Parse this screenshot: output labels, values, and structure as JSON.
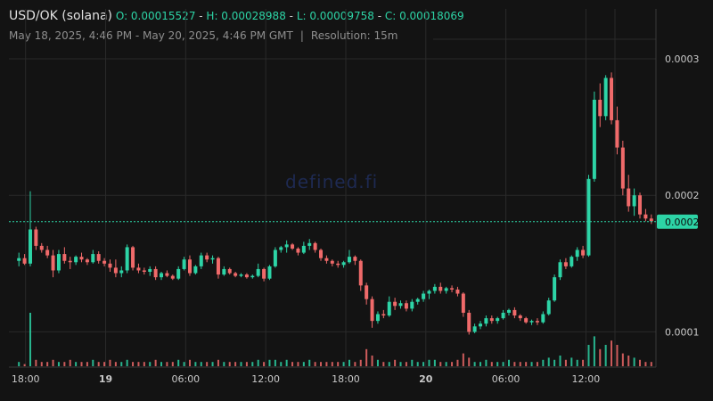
{
  "header": {
    "symbol": "USD/OK (solana)",
    "open": "O: 0.00015527",
    "high": "H: 0.00028988",
    "low": "L: 0.00009758",
    "close": "C: 0.00018069",
    "date_range": "May 18, 2025, 4:46 PM - May 20, 2025, 4:46 PM GMT",
    "separator": "|",
    "resolution": "Resolution: 15m"
  },
  "watermark": "defined.fi",
  "price_tag": "0.0002",
  "colors": {
    "up": "#2dd4a6",
    "down": "#f06a6a",
    "background": "#131313",
    "grid": "#2a2a2a",
    "price_line": "#2dd4a6"
  },
  "chart_data": {
    "type": "candlestick",
    "y_ticks": [
      {
        "value": 0.0001,
        "label": "0.0001"
      },
      {
        "value": 0.0002,
        "label": "0.0002"
      },
      {
        "value": 0.0003,
        "label": "0.0003"
      }
    ],
    "x_ticks": [
      {
        "time": 1.25,
        "label": "18:00",
        "bold": false
      },
      {
        "time": 7.25,
        "label": "19",
        "bold": true
      },
      {
        "time": 13.25,
        "label": "06:00",
        "bold": false
      },
      {
        "time": 19.25,
        "label": "12:00",
        "bold": false
      },
      {
        "time": 25.25,
        "label": "18:00",
        "bold": false
      },
      {
        "time": 31.25,
        "label": "20",
        "bold": true
      },
      {
        "time": 37.25,
        "label": "06:00",
        "bold": false
      },
      {
        "time": 43.25,
        "label": "12:00",
        "bold": false
      }
    ],
    "time_range": [
      0,
      48.5
    ],
    "price_range": [
      8.2e-05,
      0.00033
    ],
    "last_price": 0.00018069,
    "candles": [
      [
        0.000152,
        0.000158,
        0.000148,
        0.000154
      ],
      [
        0.000154,
        0.000157,
        0.000149,
        0.00015
      ],
      [
        0.00015,
        0.000203,
        0.000148,
        0.000175
      ],
      [
        0.000175,
        0.000177,
        0.00016,
        0.000163
      ],
      [
        0.000163,
        0.000165,
        0.000158,
        0.00016
      ],
      [
        0.00016,
        0.000163,
        0.000154,
        0.000156
      ],
      [
        0.000156,
        0.00016,
        0.00014,
        0.000145
      ],
      [
        0.000145,
        0.00016,
        0.000143,
        0.000157
      ],
      [
        0.000157,
        0.000162,
        0.00015,
        0.000152
      ],
      [
        0.000152,
        0.000155,
        0.000146,
        0.000151
      ],
      [
        0.000151,
        0.000156,
        0.000149,
        0.000155
      ],
      [
        0.000155,
        0.000158,
        0.000151,
        0.000153
      ],
      [
        0.000153,
        0.000154,
        0.000149,
        0.000151
      ],
      [
        0.000151,
        0.00016,
        0.00015,
        0.000157
      ],
      [
        0.000157,
        0.000159,
        0.00015,
        0.000152
      ],
      [
        0.000152,
        0.000154,
        0.000148,
        0.00015
      ],
      [
        0.00015,
        0.000153,
        0.000144,
        0.000147
      ],
      [
        0.000147,
        0.000153,
        0.00014,
        0.000143
      ],
      [
        0.000143,
        0.000148,
        0.00014,
        0.000145
      ],
      [
        0.000145,
        0.000164,
        0.000143,
        0.000162
      ],
      [
        0.000162,
        0.000163,
        0.000145,
        0.000147
      ],
      [
        0.000147,
        0.00015,
        0.000143,
        0.000145
      ],
      [
        0.000145,
        0.000147,
        0.000142,
        0.000144
      ],
      [
        0.000144,
        0.000148,
        0.000141,
        0.000146
      ],
      [
        0.000146,
        0.000148,
        0.000138,
        0.00014
      ],
      [
        0.00014,
        0.000144,
        0.000138,
        0.000143
      ],
      [
        0.000143,
        0.000145,
        0.00014,
        0.000141
      ],
      [
        0.000141,
        0.000142,
        0.000138,
        0.000139
      ],
      [
        0.000139,
        0.000148,
        0.000138,
        0.000146
      ],
      [
        0.000146,
        0.000155,
        0.000145,
        0.000153
      ],
      [
        0.000153,
        0.000156,
        0.000141,
        0.000143
      ],
      [
        0.000143,
        0.000149,
        0.000142,
        0.000148
      ],
      [
        0.000148,
        0.000158,
        0.000146,
        0.000156
      ],
      [
        0.000156,
        0.000158,
        0.000151,
        0.000153
      ],
      [
        0.000153,
        0.000156,
        0.00015,
        0.000154
      ],
      [
        0.000154,
        0.000155,
        0.000139,
        0.000142
      ],
      [
        0.000142,
        0.000148,
        0.000141,
        0.000146
      ],
      [
        0.000146,
        0.000147,
        0.000142,
        0.000143
      ],
      [
        0.000143,
        0.000144,
        0.00014,
        0.000141
      ],
      [
        0.000141,
        0.000143,
        0.00014,
        0.000142
      ],
      [
        0.000142,
        0.000143,
        0.000139,
        0.00014
      ],
      [
        0.00014,
        0.000142,
        0.000139,
        0.000141
      ],
      [
        0.000141,
        0.00015,
        0.00014,
        0.000146
      ],
      [
        0.000146,
        0.000147,
        0.000137,
        0.000139
      ],
      [
        0.000139,
        0.000149,
        0.000138,
        0.000148
      ],
      [
        0.000148,
        0.000162,
        0.000147,
        0.00016
      ],
      [
        0.00016,
        0.000163,
        0.000158,
        0.000162
      ],
      [
        0.000162,
        0.000167,
        0.000158,
        0.000164
      ],
      [
        0.000164,
        0.000165,
        0.00016,
        0.000161
      ],
      [
        0.000161,
        0.000162,
        0.000156,
        0.000158
      ],
      [
        0.000158,
        0.000166,
        0.000157,
        0.000163
      ],
      [
        0.000163,
        0.000168,
        0.00016,
        0.000165
      ],
      [
        0.000165,
        0.000166,
        0.000158,
        0.00016
      ],
      [
        0.00016,
        0.000161,
        0.000152,
        0.000154
      ],
      [
        0.000154,
        0.000156,
        0.00015,
        0.000152
      ],
      [
        0.000152,
        0.000153,
        0.000148,
        0.00015
      ],
      [
        0.00015,
        0.000152,
        0.000147,
        0.000149
      ],
      [
        0.000149,
        0.000152,
        0.000147,
        0.000151
      ],
      [
        0.000151,
        0.00016,
        0.00015,
        0.000155
      ],
      [
        0.000155,
        0.000156,
        0.000149,
        0.000152
      ],
      [
        0.000152,
        0.000153,
        0.00013,
        0.000134
      ],
      [
        0.000134,
        0.000136,
        0.00012,
        0.000124
      ],
      [
        0.000124,
        0.000126,
        0.000103,
        0.000108
      ],
      [
        0.000108,
        0.000115,
        0.000106,
        0.000113
      ],
      [
        0.000113,
        0.000116,
        0.00011,
        0.000112
      ],
      [
        0.000112,
        0.000126,
        0.000111,
        0.000122
      ],
      [
        0.000122,
        0.000125,
        0.000116,
        0.000119
      ],
      [
        0.000119,
        0.000123,
        0.000117,
        0.000121
      ],
      [
        0.000121,
        0.000123,
        0.000115,
        0.000117
      ],
      [
        0.000117,
        0.000124,
        0.000115,
        0.000122
      ],
      [
        0.000122,
        0.000125,
        0.00012,
        0.000124
      ],
      [
        0.000124,
        0.00013,
        0.000122,
        0.000128
      ],
      [
        0.000128,
        0.000131,
        0.000124,
        0.00013
      ],
      [
        0.00013,
        0.000135,
        0.000128,
        0.000133
      ],
      [
        0.000133,
        0.000136,
        0.000128,
        0.00013
      ],
      [
        0.00013,
        0.000133,
        0.000128,
        0.000132
      ],
      [
        0.000132,
        0.000134,
        0.000129,
        0.000131
      ],
      [
        0.000131,
        0.000133,
        0.000126,
        0.000128
      ],
      [
        0.000128,
        0.000129,
        0.000111,
        0.000114
      ],
      [
        0.000114,
        0.000116,
        9.8e-05,
        0.0001
      ],
      [
        0.0001,
        0.000106,
        9.9e-05,
        0.000104
      ],
      [
        0.000104,
        0.000108,
        0.000102,
        0.000106
      ],
      [
        0.000106,
        0.000112,
        0.000104,
        0.00011
      ],
      [
        0.00011,
        0.000112,
        0.000106,
        0.000108
      ],
      [
        0.000108,
        0.000111,
        0.000106,
        0.00011
      ],
      [
        0.00011,
        0.000116,
        0.000109,
        0.000114
      ],
      [
        0.000114,
        0.000117,
        0.000112,
        0.000116
      ],
      [
        0.000116,
        0.000118,
        0.00011,
        0.000112
      ],
      [
        0.000112,
        0.000113,
        0.000108,
        0.00011
      ],
      [
        0.00011,
        0.000111,
        0.000106,
        0.000107
      ],
      [
        0.000107,
        0.000109,
        0.000105,
        0.000108
      ],
      [
        0.000108,
        0.00011,
        0.000105,
        0.000107
      ],
      [
        0.000107,
        0.000115,
        0.000106,
        0.000113
      ],
      [
        0.000113,
        0.000125,
        0.000112,
        0.000123
      ],
      [
        0.000123,
        0.000142,
        0.000122,
        0.00014
      ],
      [
        0.00014,
        0.000153,
        0.000138,
        0.000151
      ],
      [
        0.000151,
        0.000154,
        0.000146,
        0.000148
      ],
      [
        0.000148,
        0.000156,
        0.000147,
        0.000155
      ],
      [
        0.000155,
        0.000162,
        0.000152,
        0.00016
      ],
      [
        0.00016,
        0.000163,
        0.000154,
        0.000156
      ],
      [
        0.000156,
        0.000215,
        0.000155,
        0.000212
      ],
      [
        0.000212,
        0.000276,
        0.00021,
        0.00027
      ],
      [
        0.00027,
        0.000282,
        0.00025,
        0.000258
      ],
      [
        0.000258,
        0.000288,
        0.000255,
        0.000286
      ],
      [
        0.000286,
        0.00029,
        0.000252,
        0.000255
      ],
      [
        0.000255,
        0.000265,
        0.00023,
        0.000235
      ],
      [
        0.000235,
        0.00024,
        0.0002,
        0.000205
      ],
      [
        0.000205,
        0.000215,
        0.000188,
        0.000192
      ],
      [
        0.000192,
        0.000205,
        0.000185,
        0.0002
      ],
      [
        0.0002,
        0.000202,
        0.000183,
        0.000186
      ],
      [
        0.000186,
        0.00019,
        0.000181,
        0.000183
      ],
      [
        0.000183,
        0.000186,
        0.000179,
        0.000181
      ]
    ],
    "volumes": [
      2,
      1,
      25,
      3,
      2,
      2,
      3,
      2,
      2,
      3,
      2,
      2,
      2,
      3,
      2,
      2,
      3,
      2,
      2,
      3,
      2,
      2,
      2,
      2,
      3,
      2,
      2,
      2,
      3,
      2,
      3,
      2,
      2,
      2,
      2,
      3,
      2,
      2,
      2,
      2,
      2,
      2,
      3,
      2,
      3,
      3,
      2,
      3,
      2,
      2,
      2,
      3,
      2,
      2,
      2,
      2,
      2,
      2,
      3,
      2,
      3,
      8,
      5,
      3,
      2,
      2,
      3,
      2,
      2,
      3,
      2,
      2,
      3,
      3,
      2,
      2,
      2,
      3,
      6,
      4,
      2,
      2,
      3,
      2,
      2,
      2,
      3,
      2,
      2,
      2,
      2,
      2,
      3,
      4,
      3,
      5,
      3,
      4,
      3,
      3,
      10,
      14,
      8,
      10,
      12,
      10,
      6,
      5,
      4,
      3,
      2,
      2
    ],
    "volume_max": 25
  }
}
